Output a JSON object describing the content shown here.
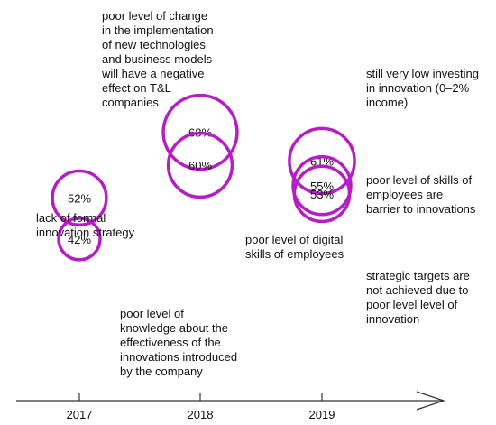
{
  "chart_data": {
    "type": "scatter",
    "title": "",
    "xlabel": "",
    "ylabel": "",
    "x_ticks": [
      "2017",
      "2018",
      "2019"
    ],
    "marker_color": "#b51ec3",
    "axis_color": "#333333",
    "points": [
      {
        "year": "2017",
        "value": 52,
        "label": "52%",
        "annotation": "lack of formal\ninnovation strategy"
      },
      {
        "year": "2017",
        "value": 42,
        "label": "42%",
        "annotation": "poor level of\nknowledge about the\neffectiveness of the\ninnovations introduced\nby the company"
      },
      {
        "year": "2018",
        "value": 68,
        "label": "68%",
        "annotation": "poor level of change\nin the implementation\nof new technologies\nand business models\nwill have a negative\neffect on T&L\ncompanies"
      },
      {
        "year": "2018",
        "value": 60,
        "label": "60%",
        "annotation": "poor level of digital\nskills of employees"
      },
      {
        "year": "2019",
        "value": 61,
        "label": "61%",
        "annotation": "still very low investing\nin innovation (0–2%\nincome)"
      },
      {
        "year": "2019",
        "value": 55,
        "label": "55%",
        "annotation": "poor level of skills of\nemployees are\nbarrier to innovations"
      },
      {
        "year": "2019",
        "value": 53,
        "label": "53%",
        "annotation": "strategic targets are\nnot achieved due to\npoor level level of\ninnovation"
      }
    ]
  }
}
